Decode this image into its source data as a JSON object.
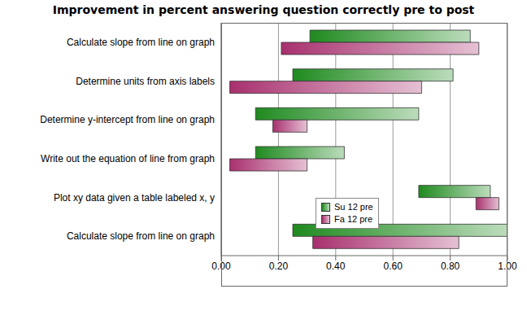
{
  "chart_data": {
    "type": "bar",
    "orientation": "horizontal",
    "title": "Improvement in percent answering question correctly pre to post",
    "categories": [
      "Calculate slope from line on graph",
      "Determine units from axis labels",
      "Determine y-intercept from line on graph",
      "Write out the equation of line from graph",
      "Plot xy data given a table labeled x, y",
      "Calculate slope from line on graph"
    ],
    "series": [
      {
        "name": "Su 12 pre",
        "color": "#1f8a1f",
        "values": [
          [
            0.31,
            0.87
          ],
          [
            0.25,
            0.81
          ],
          [
            0.12,
            0.69
          ],
          [
            0.12,
            0.43
          ],
          [
            0.69,
            0.94
          ],
          [
            0.25,
            1.0
          ]
        ]
      },
      {
        "name": "Fa 12 pre",
        "color": "#a8306e",
        "values": [
          [
            0.21,
            0.9
          ],
          [
            0.03,
            0.7
          ],
          [
            0.18,
            0.3
          ],
          [
            0.03,
            0.3
          ],
          [
            0.89,
            0.97
          ],
          [
            0.32,
            0.83
          ]
        ]
      }
    ],
    "xlim": [
      0,
      1
    ],
    "xticks": [
      {
        "value": 0,
        "label": "0.00"
      },
      {
        "value": 0.2,
        "label": "0.20"
      },
      {
        "value": 0.4,
        "label": "0.40"
      },
      {
        "value": 0.6,
        "label": "0.60"
      },
      {
        "value": 0.8,
        "label": "0.80"
      },
      {
        "value": 1,
        "label": "1.00"
      }
    ],
    "grid": true
  }
}
